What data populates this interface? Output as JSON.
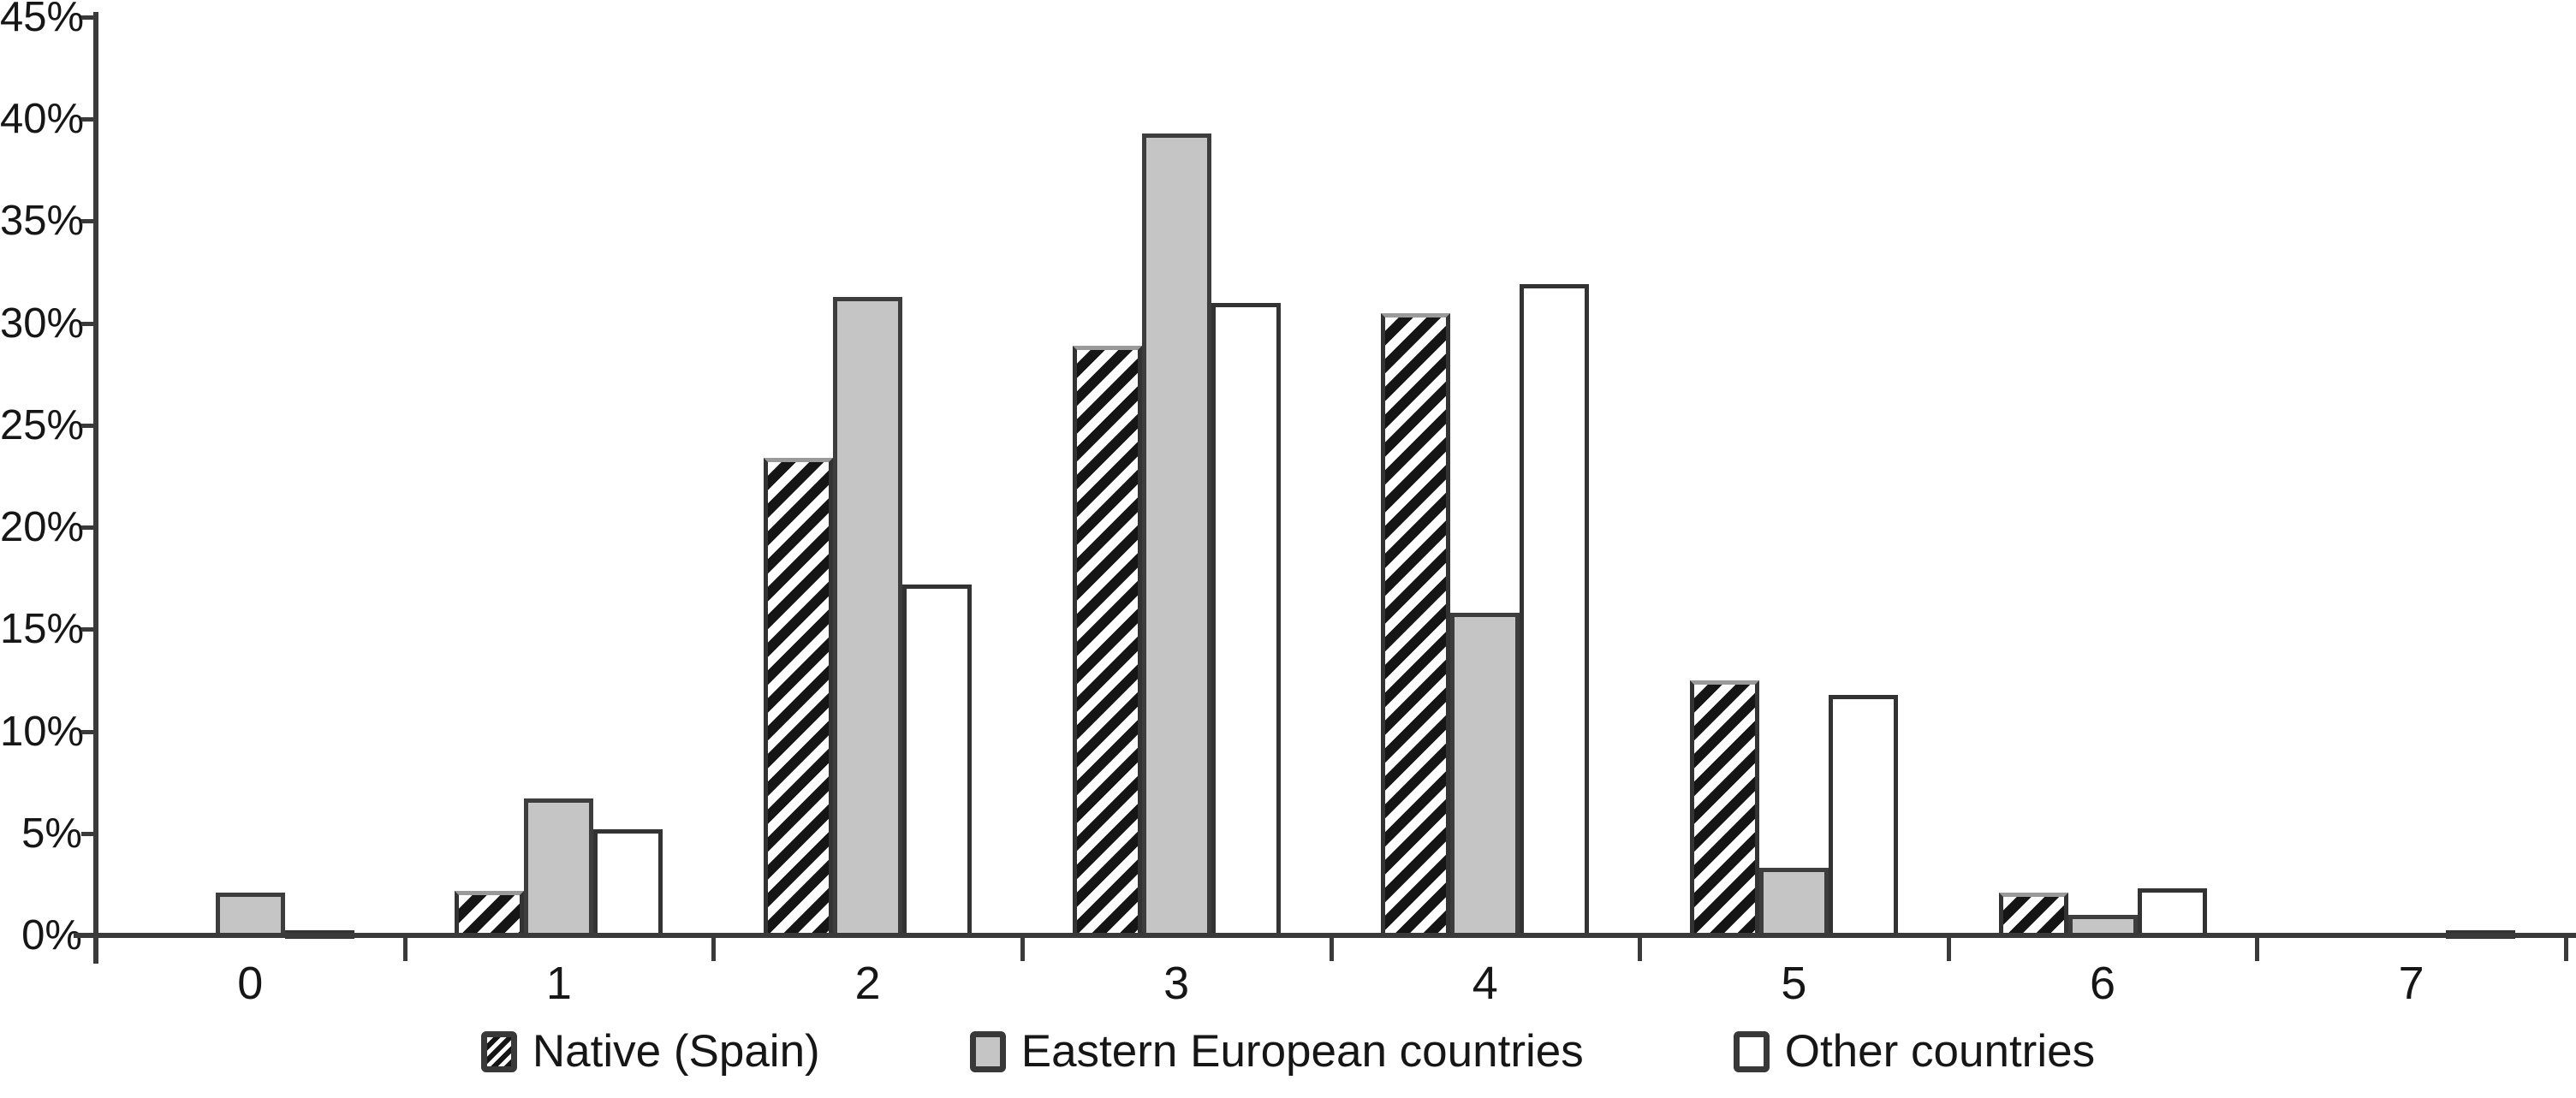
{
  "figure": {
    "background": "#ffffff",
    "text_color": "#161616",
    "axis_color": "#3a3a3a",
    "bar_border_color": "#333333",
    "gray_fill": "#c5c5c5",
    "hatch_color": "#151515"
  },
  "chart_data": {
    "type": "bar",
    "title": "",
    "xlabel": "",
    "ylabel": "",
    "categories": [
      "0",
      "1",
      "2",
      "3",
      "4",
      "5",
      "6",
      "7"
    ],
    "series": [
      {
        "name": "Native (Spain)",
        "style": "hatched",
        "fill": "#ffffff",
        "pattern": "diagonal-hatch",
        "values": [
          0,
          2.2,
          23.4,
          28.9,
          30.5,
          12.5,
          2.1,
          0
        ]
      },
      {
        "name": "Eastern European countries",
        "style": "solid-gray",
        "fill": "#c5c5c5",
        "pattern": "solid",
        "values": [
          2.1,
          6.7,
          31.3,
          39.3,
          15.8,
          3.3,
          1.0,
          0
        ]
      },
      {
        "name": "Other countries",
        "style": "solid-white",
        "fill": "#ffffff",
        "pattern": "solid",
        "values": [
          0.2,
          5.2,
          17.2,
          31.0,
          31.9,
          11.8,
          2.3,
          0.2
        ]
      }
    ],
    "ylim": [
      0,
      45
    ],
    "ytick_step": 5,
    "ytick_labels": [
      "0%",
      "5%",
      "10%",
      "15%",
      "20%",
      "25%",
      "30%",
      "35%",
      "40%",
      "45%"
    ],
    "grid": false,
    "legend_position": "bottom"
  }
}
